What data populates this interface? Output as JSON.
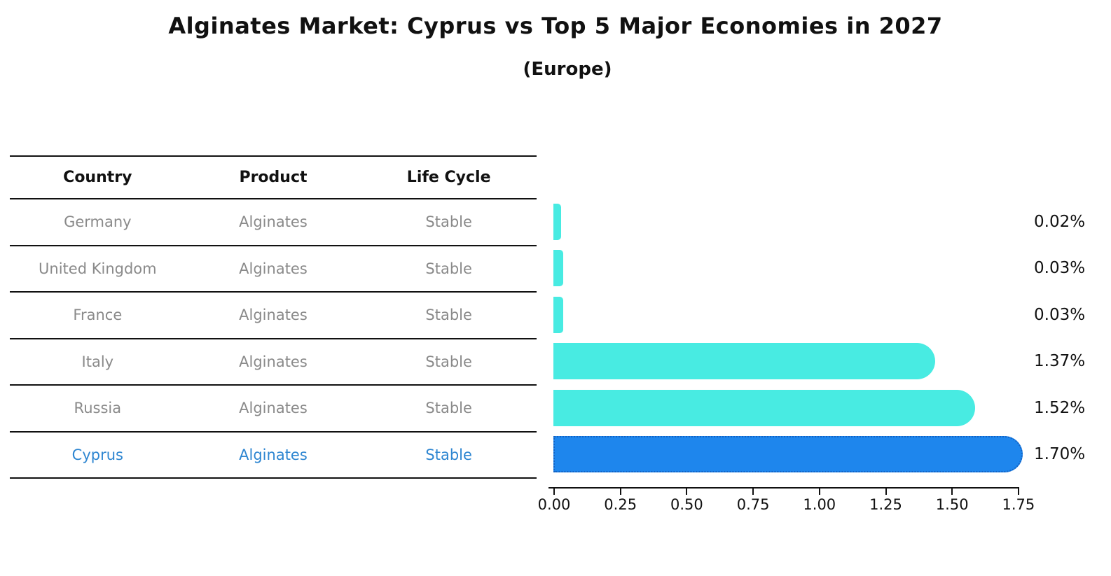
{
  "title": "Alginates Market: Cyprus vs Top 5 Major Economies in 2027",
  "subtitle": "(Europe)",
  "table": {
    "headers": [
      "Country",
      "Product",
      "Life Cycle"
    ],
    "rows": [
      {
        "country": "Germany",
        "product": "Alginates",
        "life_cycle": "Stable",
        "highlighted": false
      },
      {
        "country": "United Kingdom",
        "product": "Alginates",
        "life_cycle": "Stable",
        "highlighted": false
      },
      {
        "country": "France",
        "product": "Alginates",
        "life_cycle": "Stable",
        "highlighted": false
      },
      {
        "country": "Italy",
        "product": "Alginates",
        "life_cycle": "Stable",
        "highlighted": false
      },
      {
        "country": "Russia",
        "product": "Alginates",
        "life_cycle": "Stable",
        "highlighted": false
      },
      {
        "country": "Cyprus",
        "product": "Alginates",
        "life_cycle": "Stable",
        "highlighted": true
      }
    ]
  },
  "chart_data": {
    "type": "bar",
    "orientation": "horizontal",
    "title": "Alginates Market: Cyprus vs Top 5 Major Economies in 2027",
    "subtitle": "(Europe)",
    "categories": [
      "Germany",
      "United Kingdom",
      "France",
      "Italy",
      "Russia",
      "Cyprus"
    ],
    "values": [
      0.02,
      0.03,
      0.03,
      1.37,
      1.52,
      1.7
    ],
    "value_labels": [
      "0.02%",
      "0.03%",
      "0.03%",
      "1.37%",
      "1.52%",
      "1.70%"
    ],
    "xlim": [
      0,
      1.75
    ],
    "x_ticks": [
      "0.00",
      "0.25",
      "0.50",
      "0.75",
      "1.00",
      "1.25",
      "1.50",
      "1.75"
    ],
    "grid": false,
    "legend": false,
    "highlight_category": "Cyprus",
    "bar_color": "#48ebe2",
    "highlight_bar_color": "#1e86ed",
    "highlight_border_color": "#1262c4",
    "highlight_text_color": "#2e86d1"
  }
}
